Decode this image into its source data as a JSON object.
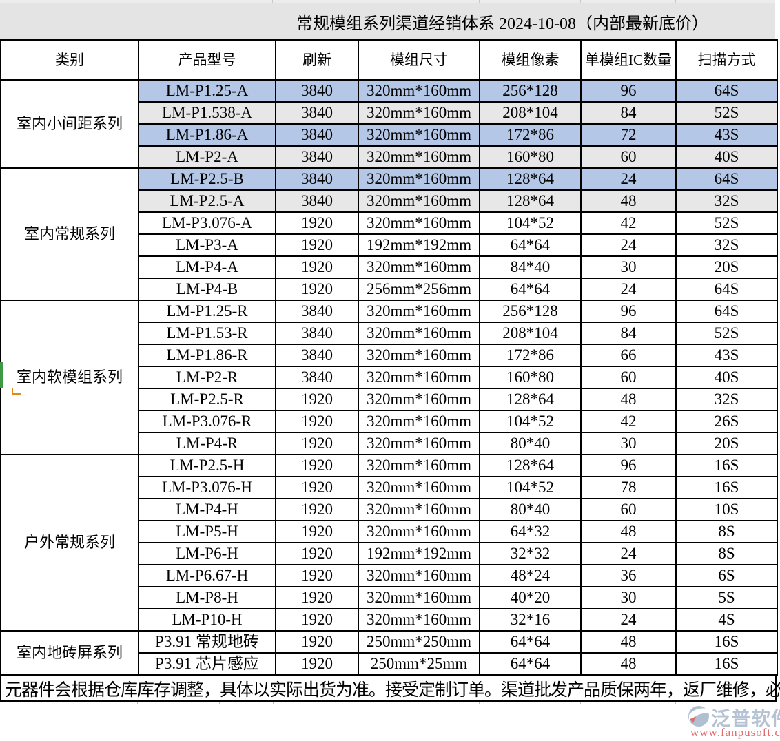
{
  "title": "常规模组系列渠道经销体系 2024-10-08（内部最新底价）",
  "columns": [
    "类别",
    "产品型号",
    "刷新",
    "模组尺寸",
    "模组像素",
    "单模组IC数量",
    "扫描方式"
  ],
  "groups": [
    {
      "category": "室内小间距系列",
      "rows": [
        {
          "model": "LM-P1.25-A",
          "refresh": "3840",
          "size": "320mm*160mm",
          "pixels": "256*128",
          "ic": "96",
          "scan": "64S",
          "bg": "blue"
        },
        {
          "model": "LM-P1.538-A",
          "refresh": "3840",
          "size": "320mm*160mm",
          "pixels": "208*104",
          "ic": "84",
          "scan": "52S",
          "bg": "gray"
        },
        {
          "model": "LM-P1.86-A",
          "refresh": "3840",
          "size": "320mm*160mm",
          "pixels": "172*86",
          "ic": "72",
          "scan": "43S",
          "bg": "blue"
        },
        {
          "model": "LM-P2-A",
          "refresh": "3840",
          "size": "320mm*160mm",
          "pixels": "160*80",
          "ic": "60",
          "scan": "40S",
          "bg": "gray"
        }
      ]
    },
    {
      "category": "室内常规系列",
      "rows": [
        {
          "model": "LM-P2.5-B",
          "refresh": "3840",
          "size": "320mm*160mm",
          "pixels": "128*64",
          "ic": "24",
          "scan": "64S",
          "bg": "blue"
        },
        {
          "model": "LM-P2.5-A",
          "refresh": "3840",
          "size": "320mm*160mm",
          "pixels": "128*64",
          "ic": "48",
          "scan": "32S",
          "bg": "gray"
        },
        {
          "model": "LM-P3.076-A",
          "refresh": "1920",
          "size": "320mm*160mm",
          "pixels": "104*52",
          "ic": "42",
          "scan": "52S",
          "bg": "white"
        },
        {
          "model": "LM-P3-A",
          "refresh": "1920",
          "size": "192mm*192mm",
          "pixels": "64*64",
          "ic": "24",
          "scan": "32S",
          "bg": "white"
        },
        {
          "model": "LM-P4-A",
          "refresh": "1920",
          "size": "320mm*160mm",
          "pixels": "84*40",
          "ic": "30",
          "scan": "20S",
          "bg": "white"
        },
        {
          "model": "LM-P4-B",
          "refresh": "1920",
          "size": "256mm*256mm",
          "pixels": "64*64",
          "ic": "24",
          "scan": "64S",
          "bg": "white"
        }
      ]
    },
    {
      "category": "室内软模组系列",
      "rows": [
        {
          "model": "LM-P1.25-R",
          "refresh": "3840",
          "size": "320mm*160mm",
          "pixels": "256*128",
          "ic": "96",
          "scan": "64S",
          "bg": "white"
        },
        {
          "model": "LM-P1.53-R",
          "refresh": "3840",
          "size": "320mm*160mm",
          "pixels": "208*104",
          "ic": "84",
          "scan": "52S",
          "bg": "white"
        },
        {
          "model": "LM-P1.86-R",
          "refresh": "3840",
          "size": "320mm*160mm",
          "pixels": "172*86",
          "ic": "66",
          "scan": "43S",
          "bg": "white"
        },
        {
          "model": "LM-P2-R",
          "refresh": "3840",
          "size": "320mm*160mm",
          "pixels": "160*80",
          "ic": "60",
          "scan": "40S",
          "bg": "white"
        },
        {
          "model": "LM-P2.5-R",
          "refresh": "1920",
          "size": "320mm*160mm",
          "pixels": "128*64",
          "ic": "48",
          "scan": "32S",
          "bg": "white"
        },
        {
          "model": "LM-P3.076-R",
          "refresh": "1920",
          "size": "320mm*160mm",
          "pixels": "104*52",
          "ic": "42",
          "scan": "26S",
          "bg": "white"
        },
        {
          "model": "LM-P4-R",
          "refresh": "1920",
          "size": "320mm*160mm",
          "pixels": "80*40",
          "ic": "30",
          "scan": "20S",
          "bg": "white"
        }
      ]
    },
    {
      "category": "户外常规系列",
      "rows": [
        {
          "model": "LM-P2.5-H",
          "refresh": "1920",
          "size": "320mm*160mm",
          "pixels": "128*64",
          "ic": "96",
          "scan": "16S",
          "bg": "white"
        },
        {
          "model": "LM-P3.076-H",
          "refresh": "1920",
          "size": "320mm*160mm",
          "pixels": "104*52",
          "ic": "78",
          "scan": "16S",
          "bg": "white"
        },
        {
          "model": "LM-P4-H",
          "refresh": "1920",
          "size": "320mm*160mm",
          "pixels": "80*40",
          "ic": "60",
          "scan": "10S",
          "bg": "white"
        },
        {
          "model": "LM-P5-H",
          "refresh": "1920",
          "size": "320mm*160mm",
          "pixels": "64*32",
          "ic": "48",
          "scan": "8S",
          "bg": "white"
        },
        {
          "model": "LM-P6-H",
          "refresh": "1920",
          "size": "192mm*192mm",
          "pixels": "32*32",
          "ic": "24",
          "scan": "8S",
          "bg": "white"
        },
        {
          "model": "LM-P6.67-H",
          "refresh": "1920",
          "size": "320mm*160mm",
          "pixels": "48*24",
          "ic": "36",
          "scan": "6S",
          "bg": "white"
        },
        {
          "model": "LM-P8-H",
          "refresh": "1920",
          "size": "320mm*160mm",
          "pixels": "40*20",
          "ic": "30",
          "scan": "5S",
          "bg": "white"
        },
        {
          "model": "LM-P10-H",
          "refresh": "1920",
          "size": "320mm*160mm",
          "pixels": "32*16",
          "ic": "24",
          "scan": "4S",
          "bg": "white"
        }
      ]
    },
    {
      "category": "室内地砖屏系列",
      "rows": [
        {
          "model": "P3.91 常规地砖",
          "refresh": "1920",
          "size": "250mm*250mm",
          "pixels": "64*64",
          "ic": "48",
          "scan": "16S",
          "bg": "white"
        },
        {
          "model": "P3.91 芯片感应",
          "refresh": "1920",
          "size": "250mm*25mm",
          "pixels": "64*64",
          "ic": "48",
          "scan": "16S",
          "bg": "white"
        }
      ]
    }
  ],
  "footer": "元器件会根据仓库库存调整，具体以实际出货为准。接受定制订单。渠道批发产品质保两年，返厂维修，必",
  "watermark": {
    "name": "泛普软件",
    "url": "www.fanpusoft.com"
  },
  "colors": {
    "row_blue": "#b4c7e7",
    "row_gray": "#e7e7e7",
    "title_bg": "#e4e4e4",
    "green_marker": "#3f9943",
    "orange_marker": "#df8a16",
    "wm_text": "#aebdd0",
    "wm_url": "#e06060"
  }
}
